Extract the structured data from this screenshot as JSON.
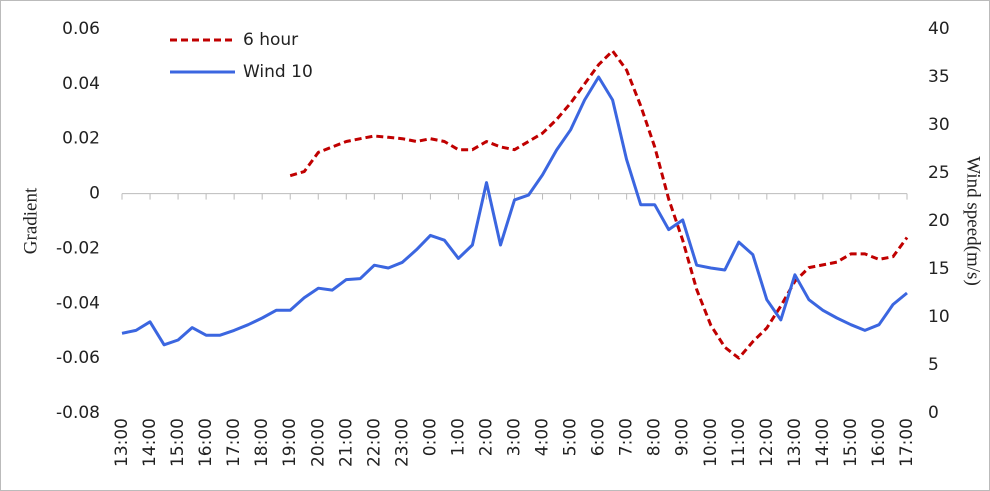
{
  "chart_data": {
    "type": "line",
    "categories": [
      "13:00",
      null,
      "14:00",
      null,
      "15:00",
      null,
      "16:00",
      null,
      "17:00",
      null,
      "18:00",
      null,
      "19:00",
      null,
      "20:00",
      null,
      "21:00",
      null,
      "22:00",
      null,
      "23:00",
      null,
      "0:00",
      null,
      "1:00",
      null,
      "2:00",
      null,
      "3:00",
      null,
      "4:00",
      null,
      "5:00",
      null,
      "6:00",
      null,
      "7:00",
      null,
      "8:00",
      null,
      "9:00",
      null,
      "10:00",
      null,
      "11:00",
      null,
      "12:00",
      null,
      "13:00",
      null,
      "14:00",
      null,
      "15:00",
      null,
      "16:00",
      null,
      "17:00"
    ],
    "ylabel": "Gradient",
    "y2label": "Wind speed(m/s)",
    "ylim": [
      -0.08,
      0.06
    ],
    "yticks": [
      -0.08,
      -0.06,
      -0.04,
      -0.02,
      0,
      0.02,
      0.04,
      0.06
    ],
    "y2lim": [
      0,
      40
    ],
    "y2ticks": [
      0,
      5,
      10,
      15,
      20,
      25,
      30,
      35,
      40
    ],
    "legend": "upper left",
    "series": [
      {
        "name": "6 hour",
        "color": "#c00000",
        "dash": true,
        "values": [
          null,
          null,
          null,
          null,
          null,
          null,
          null,
          null,
          null,
          null,
          null,
          null,
          0.0065,
          0.008,
          0.015,
          0.017,
          0.019,
          0.02,
          0.021,
          0.0205,
          0.02,
          0.019,
          0.02,
          0.019,
          0.016,
          0.016,
          0.019,
          0.017,
          0.016,
          0.019,
          0.022,
          0.027,
          0.033,
          0.04,
          0.047,
          0.052,
          0.045,
          0.032,
          0.017,
          -0.002,
          -0.017,
          -0.035,
          -0.048,
          -0.056,
          -0.06,
          -0.054,
          -0.049,
          -0.041,
          -0.032,
          -0.027,
          -0.026,
          -0.025,
          -0.022,
          -0.022,
          -0.024,
          -0.023,
          -0.016
        ]
      },
      {
        "name": "Wind 10",
        "color": "#3b66e0",
        "axis": "y2",
        "values": [
          8.3,
          8.6,
          9.5,
          7.1,
          7.6,
          8.9,
          8.1,
          8.1,
          8.6,
          9.2,
          9.9,
          10.7,
          10.7,
          12,
          13,
          12.8,
          13.9,
          14,
          15.4,
          15.1,
          15.7,
          17,
          18.5,
          18,
          16.1,
          17.5,
          24,
          17.5,
          22.2,
          22.7,
          24.8,
          27.4,
          29.5,
          32.6,
          35,
          32.6,
          26.4,
          21.7,
          21.7,
          19.1,
          20.1,
          15.4,
          15.1,
          14.9,
          17.8,
          16.5,
          11.8,
          9.7,
          14.4,
          11.8,
          10.7,
          9.9,
          9.2,
          8.6,
          9.2,
          11.3,
          12.5
        ]
      }
    ]
  }
}
